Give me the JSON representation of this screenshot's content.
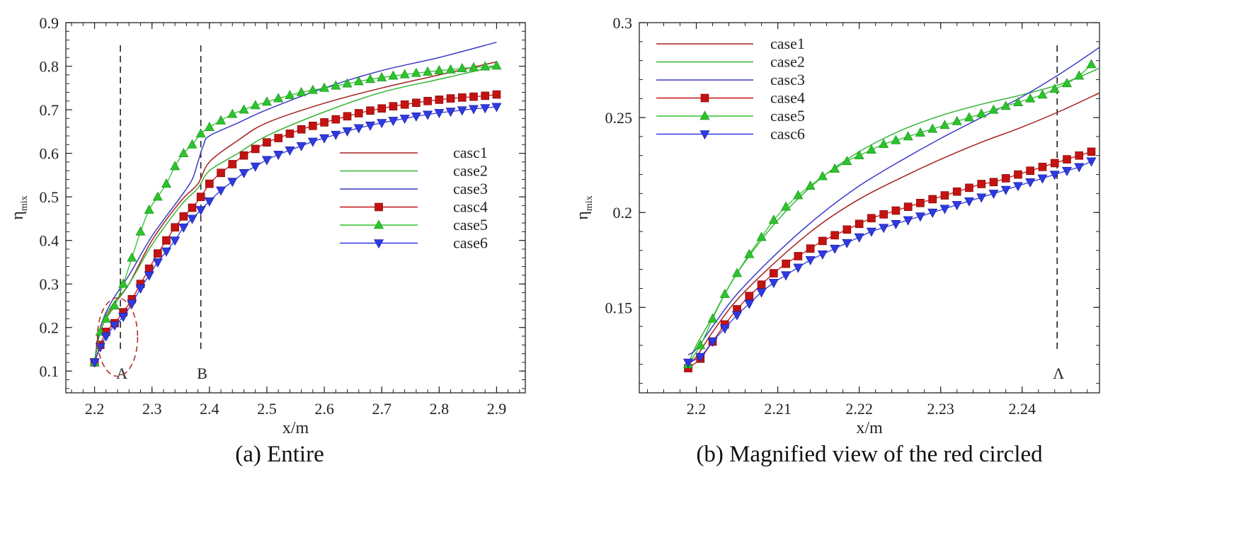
{
  "colors": {
    "case1": "#a52020",
    "case2": "#33b533",
    "case3": "#3a3ac8",
    "case4": "#c41212",
    "case5": "#2cc32c",
    "case6": "#2e3ae0",
    "ref": "#222222",
    "circle": "#b03030"
  },
  "chart_data": [
    {
      "type": "line",
      "caption": "(a)  Entire",
      "xlabel": "x/m",
      "ylabel": "η",
      "ylabel_sub": "mix",
      "xlim": [
        2.15,
        2.95
      ],
      "ylim": [
        0.05,
        0.9
      ],
      "xticks": [
        2.2,
        2.3,
        2.4,
        2.5,
        2.6,
        2.7,
        2.8,
        2.9
      ],
      "xtick_labels": [
        "2.2",
        "2.3",
        "2.4",
        "2.5",
        "2.6",
        "2.7",
        "2.8",
        "2.9"
      ],
      "yticks": [
        0.1,
        0.2,
        0.3,
        0.4,
        0.5,
        0.6,
        0.7,
        0.8,
        0.9
      ],
      "ytick_labels": [
        "0.1",
        "0.2",
        "0.3",
        "0.4",
        "0.5",
        "0.6",
        "0.7",
        "0.8",
        "0.9"
      ],
      "reference_lines": [
        {
          "x": 2.245,
          "label": "A"
        },
        {
          "x": 2.385,
          "label": "B"
        }
      ],
      "highlight_circle": {
        "cx": 2.24,
        "cy": 0.178,
        "rx": 0.035,
        "ry": 0.09
      },
      "legend": {
        "position": "center-right",
        "entries": [
          "casc1",
          "case2",
          "case3",
          "casc4",
          "case5",
          "case6"
        ]
      },
      "series": [
        {
          "name": "casc1",
          "color_key": "case1",
          "marker": "none",
          "x": [
            2.2,
            2.21,
            2.23,
            2.26,
            2.3,
            2.35,
            2.38,
            2.4,
            2.45,
            2.5,
            2.6,
            2.7,
            2.8,
            2.9
          ],
          "y": [
            0.12,
            0.19,
            0.245,
            0.3,
            0.4,
            0.49,
            0.53,
            0.58,
            0.63,
            0.67,
            0.715,
            0.75,
            0.78,
            0.81
          ]
        },
        {
          "name": "case2",
          "color_key": "case2",
          "marker": "none",
          "x": [
            2.2,
            2.21,
            2.23,
            2.26,
            2.3,
            2.35,
            2.38,
            2.4,
            2.45,
            2.5,
            2.6,
            2.7,
            2.8,
            2.9
          ],
          "y": [
            0.12,
            0.2,
            0.25,
            0.3,
            0.39,
            0.48,
            0.52,
            0.56,
            0.6,
            0.64,
            0.695,
            0.74,
            0.77,
            0.8
          ]
        },
        {
          "name": "case3",
          "color_key": "case3",
          "marker": "none",
          "x": [
            2.2,
            2.21,
            2.23,
            2.26,
            2.3,
            2.35,
            2.37,
            2.38,
            2.39,
            2.4,
            2.45,
            2.5,
            2.6,
            2.7,
            2.8,
            2.9
          ],
          "y": [
            0.12,
            0.2,
            0.26,
            0.32,
            0.41,
            0.5,
            0.54,
            0.58,
            0.62,
            0.64,
            0.67,
            0.7,
            0.75,
            0.79,
            0.82,
            0.855
          ]
        },
        {
          "name": "casc4",
          "color_key": "case4",
          "marker": "square",
          "x": [
            2.2,
            2.21,
            2.22,
            2.235,
            2.25,
            2.265,
            2.28,
            2.295,
            2.31,
            2.325,
            2.34,
            2.355,
            2.37,
            2.385,
            2.4,
            2.42,
            2.44,
            2.46,
            2.48,
            2.5,
            2.52,
            2.54,
            2.56,
            2.58,
            2.6,
            2.62,
            2.64,
            2.66,
            2.68,
            2.7,
            2.72,
            2.74,
            2.76,
            2.78,
            2.8,
            2.82,
            2.84,
            2.86,
            2.88,
            2.9
          ],
          "y": [
            0.12,
            0.16,
            0.19,
            0.21,
            0.235,
            0.265,
            0.3,
            0.335,
            0.37,
            0.4,
            0.43,
            0.455,
            0.475,
            0.5,
            0.53,
            0.555,
            0.575,
            0.595,
            0.61,
            0.625,
            0.635,
            0.645,
            0.655,
            0.663,
            0.671,
            0.678,
            0.685,
            0.692,
            0.698,
            0.703,
            0.708,
            0.712,
            0.716,
            0.72,
            0.723,
            0.726,
            0.728,
            0.73,
            0.732,
            0.735
          ]
        },
        {
          "name": "case5",
          "color_key": "case5",
          "marker": "triangle-up",
          "x": [
            2.2,
            2.21,
            2.22,
            2.235,
            2.25,
            2.265,
            2.28,
            2.295,
            2.31,
            2.325,
            2.34,
            2.355,
            2.37,
            2.385,
            2.4,
            2.42,
            2.44,
            2.46,
            2.48,
            2.5,
            2.52,
            2.54,
            2.56,
            2.58,
            2.6,
            2.62,
            2.64,
            2.66,
            2.68,
            2.7,
            2.72,
            2.74,
            2.76,
            2.78,
            2.8,
            2.82,
            2.84,
            2.86,
            2.88,
            2.9
          ],
          "y": [
            0.12,
            0.19,
            0.22,
            0.25,
            0.3,
            0.36,
            0.42,
            0.47,
            0.5,
            0.53,
            0.57,
            0.6,
            0.62,
            0.645,
            0.66,
            0.675,
            0.69,
            0.7,
            0.71,
            0.718,
            0.726,
            0.733,
            0.74,
            0.745,
            0.75,
            0.755,
            0.76,
            0.765,
            0.77,
            0.774,
            0.778,
            0.781,
            0.784,
            0.787,
            0.79,
            0.792,
            0.795,
            0.797,
            0.799,
            0.801
          ]
        },
        {
          "name": "case6",
          "color_key": "case6",
          "marker": "triangle-down",
          "x": [
            2.2,
            2.21,
            2.22,
            2.235,
            2.25,
            2.265,
            2.28,
            2.295,
            2.31,
            2.325,
            2.34,
            2.355,
            2.37,
            2.385,
            2.4,
            2.42,
            2.44,
            2.46,
            2.48,
            2.5,
            2.52,
            2.54,
            2.56,
            2.58,
            2.6,
            2.62,
            2.64,
            2.66,
            2.68,
            2.7,
            2.72,
            2.74,
            2.76,
            2.78,
            2.8,
            2.82,
            2.84,
            2.86,
            2.88,
            2.9
          ],
          "y": [
            0.12,
            0.155,
            0.18,
            0.205,
            0.225,
            0.255,
            0.29,
            0.32,
            0.35,
            0.375,
            0.4,
            0.43,
            0.45,
            0.47,
            0.49,
            0.515,
            0.535,
            0.555,
            0.57,
            0.585,
            0.597,
            0.607,
            0.617,
            0.627,
            0.635,
            0.643,
            0.651,
            0.658,
            0.664,
            0.67,
            0.675,
            0.68,
            0.685,
            0.689,
            0.693,
            0.696,
            0.699,
            0.702,
            0.704,
            0.707
          ]
        }
      ]
    },
    {
      "type": "line",
      "caption": "(b)  Magnified view of the red circled",
      "xlabel": "x/m",
      "ylabel": "η",
      "ylabel_sub": "mix",
      "xlim": [
        2.193,
        2.2495
      ],
      "ylim": [
        0.105,
        0.3
      ],
      "xticks": [
        2.2,
        2.21,
        2.22,
        2.23,
        2.24
      ],
      "xtick_labels": [
        "2.2",
        "2.21",
        "2.22",
        "2.23",
        "2.24"
      ],
      "yticks": [
        0.15,
        0.2,
        0.25,
        0.3
      ],
      "ytick_labels": [
        "0.15",
        "0.2",
        "0.25",
        "0.3"
      ],
      "reference_lines": [
        {
          "x": 2.2443,
          "label": "Λ"
        }
      ],
      "legend": {
        "position": "top-left",
        "entries": [
          "case1",
          "case2",
          "casc3",
          "case4",
          "case5",
          "casc6"
        ]
      },
      "series": [
        {
          "name": "case1",
          "color_key": "case1",
          "marker": "none",
          "x": [
            2.199,
            2.2,
            2.202,
            2.205,
            2.21,
            2.215,
            2.22,
            2.225,
            2.23,
            2.235,
            2.24,
            2.245,
            2.2495
          ],
          "y": [
            0.12,
            0.124,
            0.137,
            0.154,
            0.175,
            0.193,
            0.207,
            0.218,
            0.228,
            0.237,
            0.245,
            0.254,
            0.263
          ]
        },
        {
          "name": "case2",
          "color_key": "case2",
          "marker": "none",
          "x": [
            2.199,
            2.2,
            2.202,
            2.205,
            2.21,
            2.215,
            2.22,
            2.225,
            2.23,
            2.235,
            2.24,
            2.245,
            2.2495
          ],
          "y": [
            0.12,
            0.13,
            0.145,
            0.168,
            0.196,
            0.217,
            0.232,
            0.243,
            0.251,
            0.257,
            0.262,
            0.268,
            0.276
          ]
        },
        {
          "name": "casc3",
          "color_key": "case3",
          "marker": "none",
          "x": [
            2.199,
            2.2,
            2.202,
            2.205,
            2.21,
            2.215,
            2.22,
            2.225,
            2.23,
            2.235,
            2.24,
            2.245,
            2.2495
          ],
          "y": [
            0.125,
            0.128,
            0.14,
            0.157,
            0.179,
            0.198,
            0.214,
            0.227,
            0.239,
            0.25,
            0.261,
            0.274,
            0.287
          ]
        },
        {
          "name": "case4",
          "color_key": "case4",
          "marker": "square",
          "x": [
            2.199,
            2.2005,
            2.202,
            2.2035,
            2.205,
            2.2065,
            2.208,
            2.2095,
            2.211,
            2.2125,
            2.214,
            2.2155,
            2.217,
            2.2185,
            2.22,
            2.2215,
            2.223,
            2.2245,
            2.226,
            2.2275,
            2.229,
            2.2305,
            2.232,
            2.2335,
            2.235,
            2.2365,
            2.238,
            2.2395,
            2.241,
            2.2425,
            2.244,
            2.2455,
            2.247,
            2.2485
          ],
          "y": [
            0.118,
            0.123,
            0.132,
            0.141,
            0.149,
            0.156,
            0.162,
            0.168,
            0.173,
            0.177,
            0.181,
            0.185,
            0.188,
            0.191,
            0.194,
            0.197,
            0.199,
            0.201,
            0.203,
            0.205,
            0.207,
            0.209,
            0.211,
            0.213,
            0.215,
            0.216,
            0.218,
            0.22,
            0.222,
            0.224,
            0.226,
            0.228,
            0.23,
            0.232
          ]
        },
        {
          "name": "case5",
          "color_key": "case5",
          "marker": "triangle-up",
          "x": [
            2.199,
            2.2005,
            2.202,
            2.2035,
            2.205,
            2.2065,
            2.208,
            2.2095,
            2.211,
            2.2125,
            2.214,
            2.2155,
            2.217,
            2.2185,
            2.22,
            2.2215,
            2.223,
            2.2245,
            2.226,
            2.2275,
            2.229,
            2.2305,
            2.232,
            2.2335,
            2.235,
            2.2365,
            2.238,
            2.2395,
            2.241,
            2.2425,
            2.244,
            2.2455,
            2.247,
            2.2485
          ],
          "y": [
            0.12,
            0.13,
            0.144,
            0.157,
            0.168,
            0.178,
            0.187,
            0.196,
            0.203,
            0.209,
            0.214,
            0.219,
            0.223,
            0.227,
            0.23,
            0.233,
            0.236,
            0.238,
            0.24,
            0.242,
            0.244,
            0.246,
            0.248,
            0.25,
            0.252,
            0.254,
            0.256,
            0.258,
            0.26,
            0.262,
            0.265,
            0.268,
            0.272,
            0.278
          ]
        },
        {
          "name": "casc6",
          "color_key": "case6",
          "marker": "triangle-down",
          "x": [
            2.199,
            2.2005,
            2.202,
            2.2035,
            2.205,
            2.2065,
            2.208,
            2.2095,
            2.211,
            2.2125,
            2.214,
            2.2155,
            2.217,
            2.2185,
            2.22,
            2.2215,
            2.223,
            2.2245,
            2.226,
            2.2275,
            2.229,
            2.2305,
            2.232,
            2.2335,
            2.235,
            2.2365,
            2.238,
            2.2395,
            2.241,
            2.2425,
            2.244,
            2.2455,
            2.247,
            2.2485
          ],
          "y": [
            0.121,
            0.124,
            0.132,
            0.139,
            0.146,
            0.152,
            0.158,
            0.163,
            0.167,
            0.171,
            0.175,
            0.178,
            0.181,
            0.184,
            0.187,
            0.19,
            0.192,
            0.194,
            0.196,
            0.198,
            0.2,
            0.202,
            0.204,
            0.206,
            0.208,
            0.21,
            0.212,
            0.214,
            0.216,
            0.218,
            0.22,
            0.222,
            0.224,
            0.227
          ]
        }
      ]
    }
  ]
}
